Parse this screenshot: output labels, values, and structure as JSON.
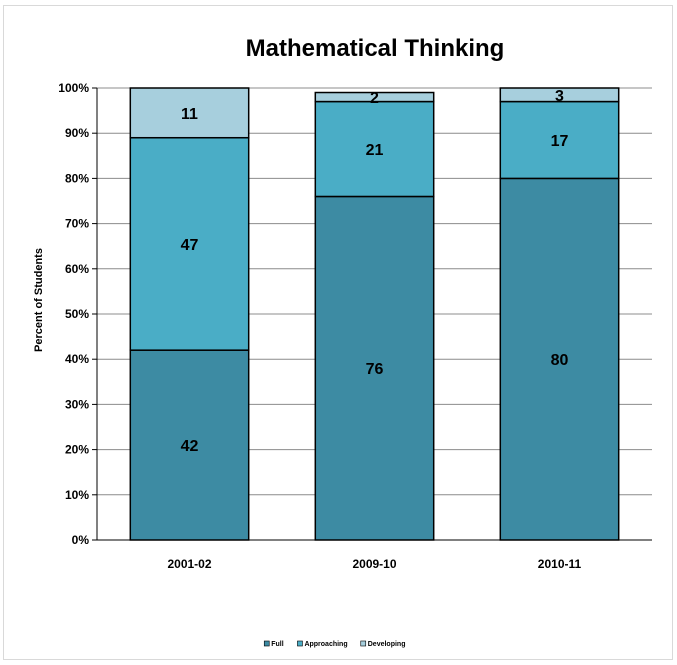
{
  "chart_data": {
    "type": "bar",
    "stacked": true,
    "title": "Mathematical Thinking",
    "ylabel": "Percent of Students",
    "xlabel": "",
    "ylim": [
      0,
      100
    ],
    "yticks": [
      "0%",
      "10%",
      "20%",
      "30%",
      "40%",
      "50%",
      "60%",
      "70%",
      "80%",
      "90%",
      "100%"
    ],
    "categories": [
      "2001-02",
      "2009-10",
      "2010-11"
    ],
    "series": [
      {
        "name": "Full",
        "values": [
          42,
          76,
          80
        ],
        "color": "#3d8ba3"
      },
      {
        "name": "Approaching",
        "values": [
          47,
          21,
          17
        ],
        "color": "#4aadc6"
      },
      {
        "name": "Developing",
        "values": [
          11,
          2,
          3
        ],
        "color": "#a7cfdd"
      }
    ],
    "grid": true,
    "legend": "bottom"
  }
}
